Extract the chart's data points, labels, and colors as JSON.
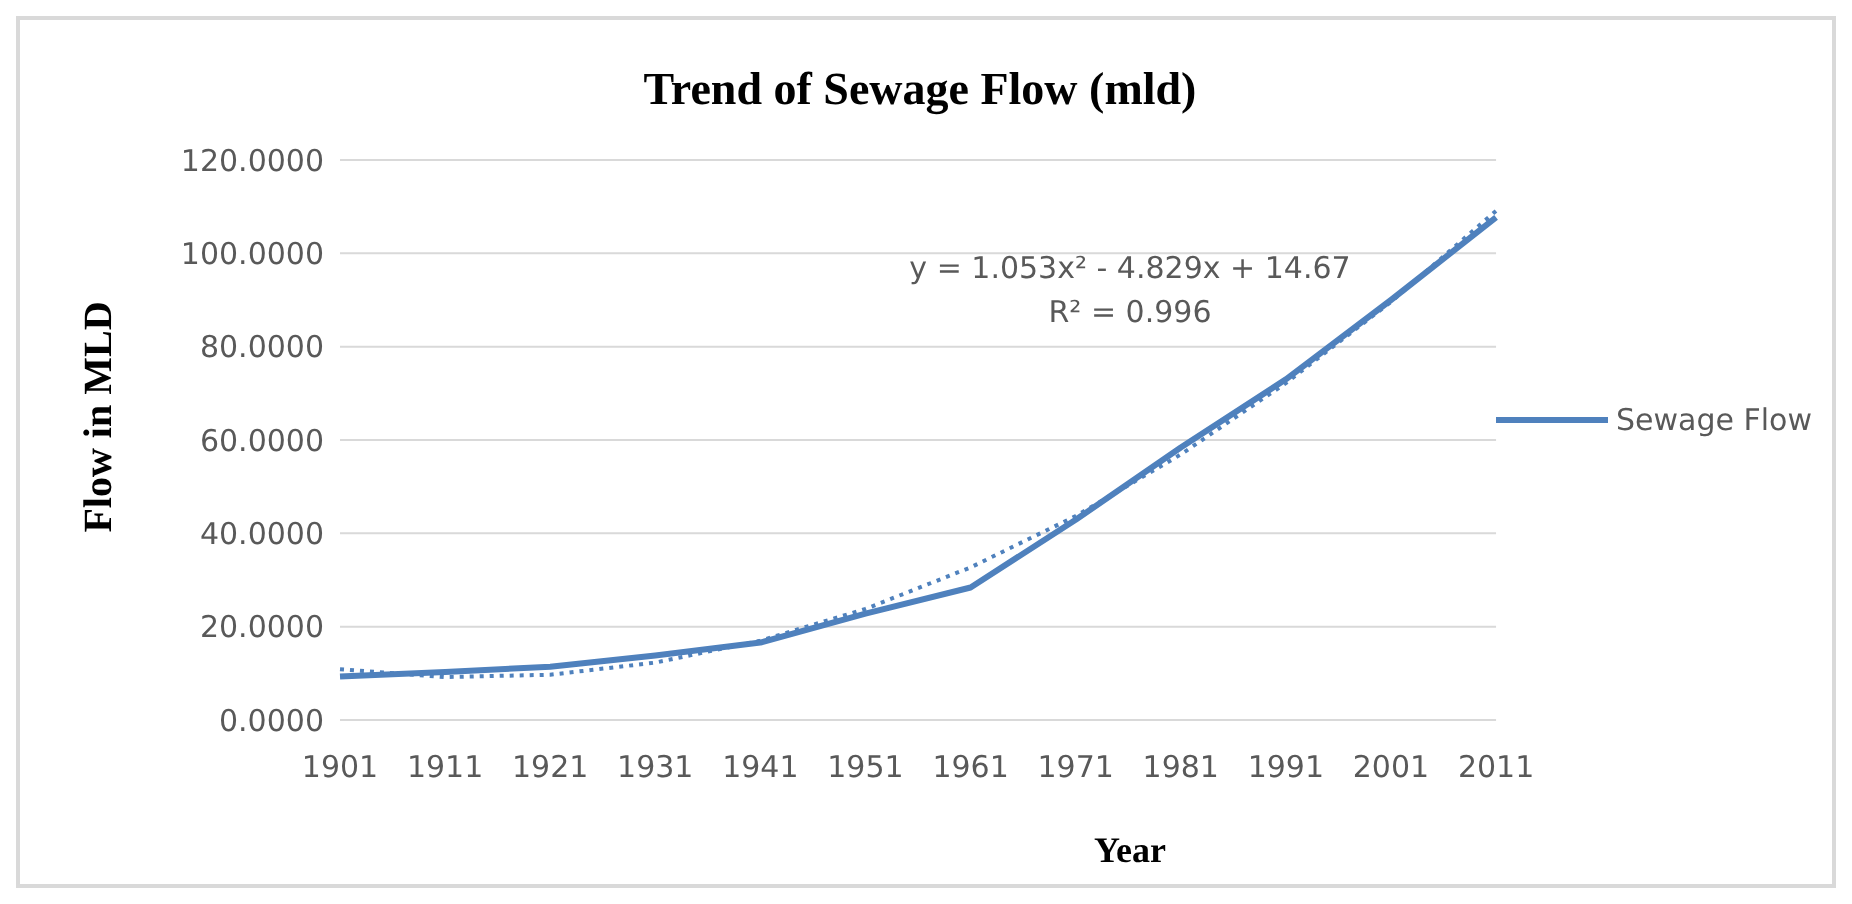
{
  "chart_data": {
    "type": "line",
    "title": "Trend of Sewage Flow (mld)",
    "xlabel": "Year",
    "ylabel": "Flow in MLD",
    "categories": [
      "1901",
      "1911",
      "1921",
      "1931",
      "1941",
      "1951",
      "1961",
      "1971",
      "1981",
      "1991",
      "2001",
      "2011"
    ],
    "series": [
      {
        "name": "Sewage Flow",
        "color": "#4f81bd",
        "values": [
          9.3,
          10.3,
          11.4,
          13.8,
          16.6,
          22.8,
          28.4,
          42.9,
          58.4,
          73,
          90,
          107.7
        ],
        "line_style": "solid"
      },
      {
        "color": "#4f81bd",
        "values": [
          10.9,
          9.2,
          9.7,
          12.3,
          17,
          23.8,
          32.7,
          43.7,
          56.9,
          72.2,
          89.6,
          109.1
        ],
        "line_style": "dotted"
      }
    ],
    "ylim": [
      0,
      120
    ],
    "yticks": [
      {
        "value": 0,
        "label": "0.0000"
      },
      {
        "value": 20,
        "label": "20.0000"
      },
      {
        "value": 40,
        "label": "40.0000"
      },
      {
        "value": 60,
        "label": "60.0000"
      },
      {
        "value": 80,
        "label": "80.0000"
      },
      {
        "value": 100,
        "label": "100.0000"
      },
      {
        "value": 120,
        "label": "120.0000"
      }
    ],
    "grid": "y",
    "legend": "right",
    "marker": "none",
    "annotations": [
      "y = 1.053x² - 4.829x + 14.67",
      "R² = 0.996"
    ]
  }
}
